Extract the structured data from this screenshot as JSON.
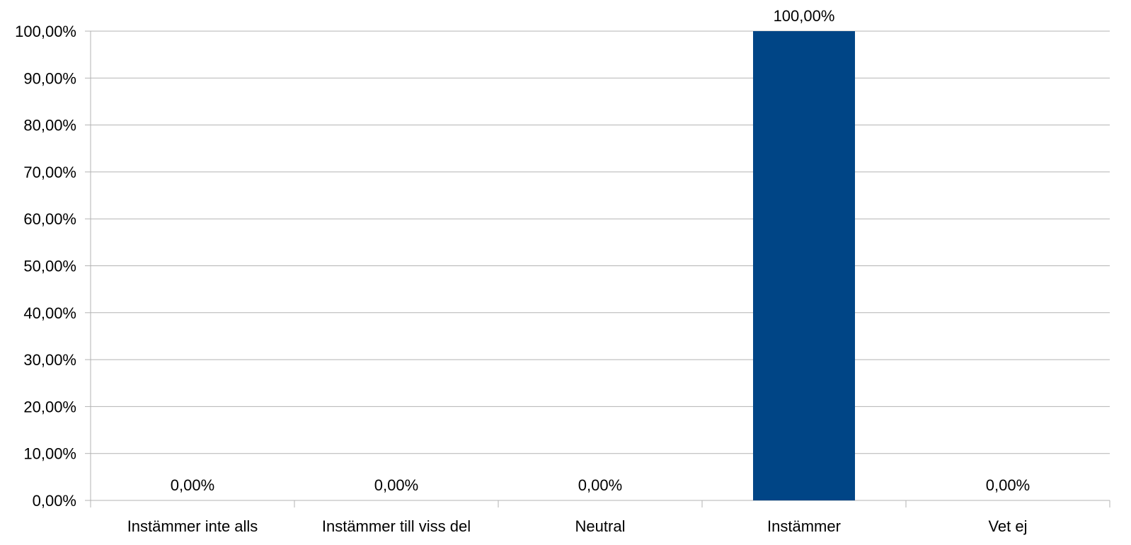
{
  "chart_data": {
    "type": "bar",
    "categories": [
      "Instämmer inte alls",
      "Instämmer till viss del",
      "Neutral",
      "Instämmer",
      "Vet ej"
    ],
    "values": [
      0,
      0,
      0,
      100,
      0
    ],
    "data_labels": [
      "0,00%",
      "0,00%",
      "0,00%",
      "100,00%",
      "0,00%"
    ],
    "ylim": [
      0,
      100
    ],
    "y_ticks": [
      0,
      10,
      20,
      30,
      40,
      50,
      60,
      70,
      80,
      90,
      100
    ],
    "y_tick_labels": [
      "0,00%",
      "10,00%",
      "20,00%",
      "30,00%",
      "40,00%",
      "50,00%",
      "60,00%",
      "70,00%",
      "80,00%",
      "90,00%",
      "100,00%"
    ],
    "title": "",
    "xlabel": "",
    "ylabel": "",
    "grid": true,
    "legend": "none",
    "bar_color": "#004586"
  }
}
